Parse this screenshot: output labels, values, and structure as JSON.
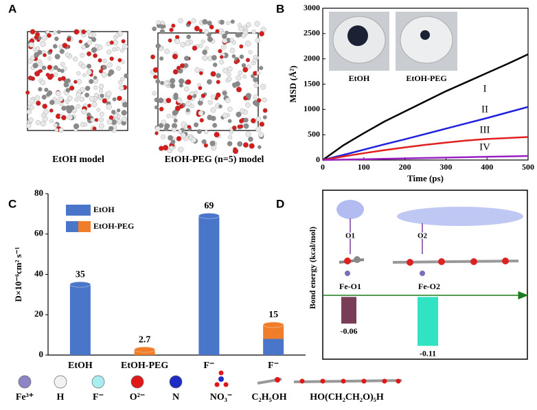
{
  "panel_labels": [
    "A",
    "B",
    "C",
    "D"
  ],
  "panel_a": {
    "captions": [
      "EtOH model",
      "EtOH-PEG (n=5) model"
    ]
  },
  "chart_data": [
    {
      "type": "line",
      "ylabel": "MSD (Å²)",
      "xlabel": "Time (ps)",
      "x": [
        0,
        50,
        100,
        150,
        200,
        250,
        300,
        350,
        400,
        450,
        500
      ],
      "xlim": [
        0,
        500
      ],
      "xticks": [
        0,
        100,
        200,
        300,
        400,
        500
      ],
      "ylim": [
        0,
        3000
      ],
      "yticks": [
        0,
        500,
        1000,
        1500,
        2000,
        2500,
        3000
      ],
      "series": [
        {
          "name": "I",
          "color": "#000000",
          "values": [
            0,
            290,
            530,
            760,
            960,
            1160,
            1360,
            1540,
            1720,
            1900,
            2090
          ]
        },
        {
          "name": "II",
          "color": "#1f1fe0",
          "values": [
            0,
            100,
            205,
            310,
            410,
            515,
            620,
            725,
            830,
            940,
            1050
          ]
        },
        {
          "name": "III",
          "color": "#e01f1f",
          "values": [
            0,
            70,
            135,
            195,
            250,
            300,
            345,
            385,
            415,
            435,
            455
          ]
        },
        {
          "name": "IV",
          "color": "#9b1fc4",
          "values": [
            0,
            8,
            16,
            24,
            32,
            40,
            48,
            56,
            64,
            72,
            80
          ]
        }
      ],
      "annotations": [
        "EtOH",
        "EtOH-PEG"
      ]
    },
    {
      "type": "bar",
      "ylabel": "D×10⁻⁶cm² s⁻¹",
      "categories": [
        "EtOH",
        "EtOH-PEG",
        "F⁻",
        "F⁻"
      ],
      "ylim": [
        0,
        80
      ],
      "yticks": [
        0,
        20,
        40,
        60,
        80
      ],
      "series": [
        {
          "name": "EtOH",
          "color": "#4a76c9",
          "values": [
            35,
            0,
            69,
            8
          ]
        },
        {
          "name": "EtOH-PEG",
          "color": "#f07d2a",
          "values": [
            0,
            2.7,
            0,
            7
          ]
        }
      ],
      "totals": [
        35,
        2.7,
        69,
        15
      ]
    },
    {
      "type": "bar",
      "ylabel": "Bond energy (kcal/mol)",
      "categories": [
        "Fe-O1",
        "Fe-O2"
      ],
      "values": [
        -0.06,
        -0.11
      ],
      "colors": [
        "#7a3d58",
        "#2fe3c3"
      ],
      "ylim": [
        -0.14,
        0.24
      ],
      "annotations": [
        "O1",
        "O2"
      ]
    }
  ],
  "legend_items": [
    "Fe³⁺",
    "H",
    "F⁻",
    "O²⁻",
    "N",
    "NO₃⁻",
    "C₂H₅OH",
    "HO(CH₂CH₂O)₅H"
  ]
}
